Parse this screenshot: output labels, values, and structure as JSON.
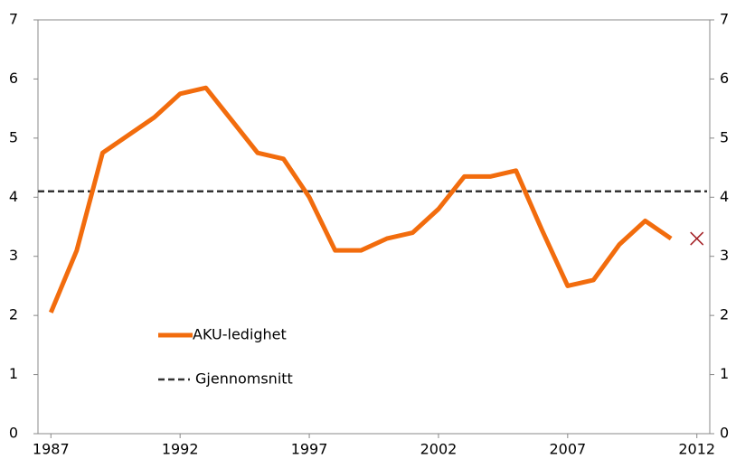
{
  "chart_data": {
    "type": "line",
    "x": [
      1987,
      1988,
      1989,
      1990,
      1991,
      1992,
      1993,
      1994,
      1995,
      1996,
      1997,
      1998,
      1999,
      2000,
      2001,
      2002,
      2003,
      2004,
      2005,
      2006,
      2007,
      2008,
      2009,
      2010,
      2011,
      2012
    ],
    "series": [
      {
        "name": "AKU-ledighet",
        "color": "#f26c0d",
        "values": [
          2.05,
          3.1,
          4.75,
          5.05,
          5.35,
          5.75,
          5.85,
          5.3,
          4.75,
          4.65,
          4.0,
          3.1,
          3.1,
          3.3,
          3.4,
          3.8,
          4.35,
          4.35,
          4.45,
          3.45,
          2.5,
          2.6,
          3.2,
          3.6,
          3.3,
          null
        ]
      },
      {
        "color": "#a31f24",
        "marker": "x",
        "values": [
          null,
          null,
          null,
          null,
          null,
          null,
          null,
          null,
          null,
          null,
          null,
          null,
          null,
          null,
          null,
          null,
          null,
          null,
          null,
          null,
          null,
          null,
          null,
          null,
          null,
          3.3
        ]
      }
    ],
    "average": {
      "name": "Gjennomsnitt",
      "value": 4.1,
      "color": "#333333"
    },
    "xlim": [
      1986.5,
      2012.5
    ],
    "xticks": [
      1987,
      1992,
      1997,
      2002,
      2007,
      2012
    ],
    "ylim": [
      0,
      7
    ],
    "yticks": [
      0,
      1,
      2,
      3,
      4,
      5,
      6,
      7
    ],
    "y2lim": [
      0,
      7
    ],
    "y2ticks": [
      0,
      1,
      2,
      3,
      4,
      5,
      6,
      7
    ]
  }
}
